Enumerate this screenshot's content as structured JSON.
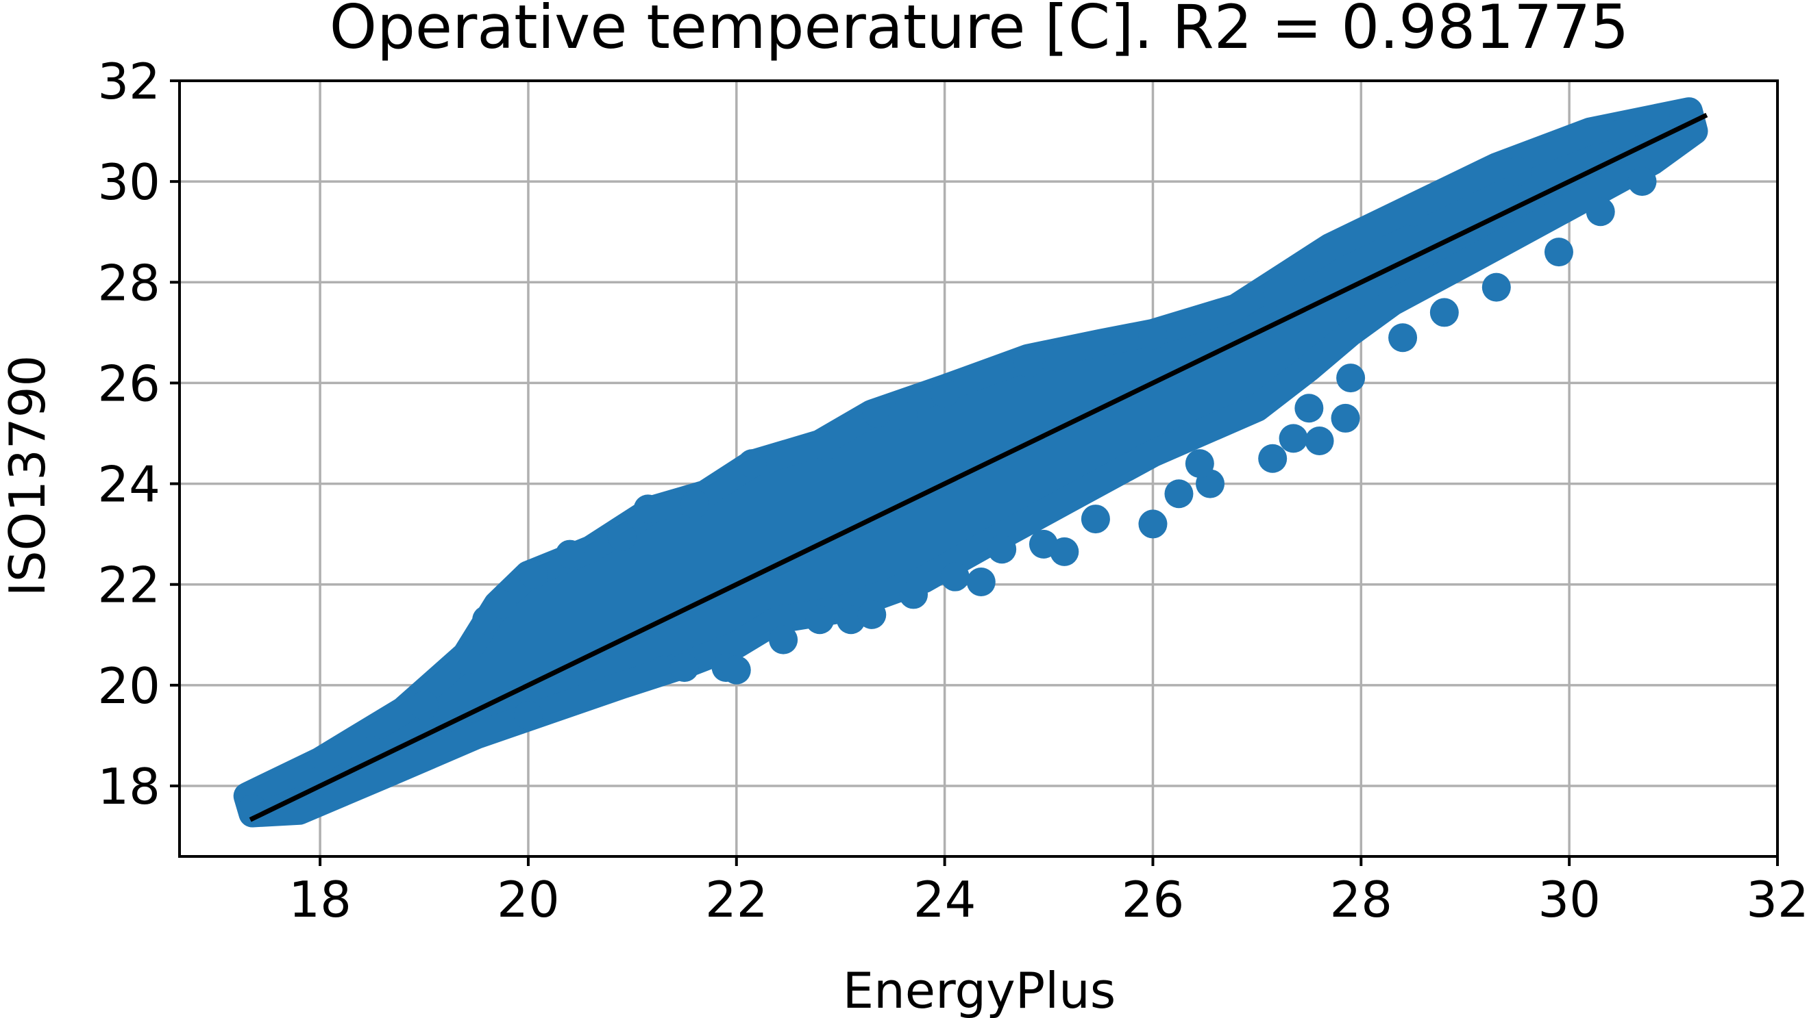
{
  "chart_data": {
    "type": "scatter",
    "title": "Operative temperature [C]. R2 = 0.981775",
    "xlabel": "EnergyPlus",
    "ylabel": "ISO13790",
    "xlim": [
      16.65,
      32
    ],
    "ylim": [
      16.6,
      32
    ],
    "x_ticks": [
      "18",
      "20",
      "22",
      "24",
      "26",
      "28",
      "30",
      "32"
    ],
    "y_ticks": [
      "18",
      "20",
      "22",
      "24",
      "26",
      "28",
      "30",
      "32"
    ],
    "grid": true,
    "colors": {
      "points": "#2277b4",
      "fit_line": "#000000",
      "grid": "#b0b0b0"
    },
    "fit_line": {
      "x": [
        17.35,
        31.3
      ],
      "y": [
        17.35,
        31.3
      ]
    },
    "band_upper": [
      [
        17.3,
        17.8
      ],
      [
        18.0,
        18.5
      ],
      [
        18.8,
        19.5
      ],
      [
        19.4,
        20.6
      ],
      [
        19.7,
        21.6
      ],
      [
        20.0,
        22.2
      ],
      [
        20.6,
        22.7
      ],
      [
        21.2,
        23.5
      ],
      [
        21.7,
        23.8
      ],
      [
        22.15,
        24.4
      ],
      [
        22.8,
        24.8
      ],
      [
        23.3,
        25.4
      ],
      [
        24.0,
        25.9
      ],
      [
        24.8,
        26.5
      ],
      [
        25.5,
        26.8
      ],
      [
        26.0,
        27.0
      ],
      [
        26.8,
        27.5
      ],
      [
        27.7,
        28.7
      ],
      [
        28.5,
        29.5
      ],
      [
        29.3,
        30.3
      ],
      [
        30.2,
        31.0
      ],
      [
        31.15,
        31.4
      ]
    ],
    "band_lower": [
      [
        31.2,
        31.0
      ],
      [
        30.8,
        30.4
      ],
      [
        30.0,
        29.5
      ],
      [
        29.2,
        28.6
      ],
      [
        28.3,
        27.6
      ],
      [
        27.9,
        27.0
      ],
      [
        27.5,
        26.3
      ],
      [
        27.0,
        25.5
      ],
      [
        26.0,
        24.6
      ],
      [
        25.2,
        23.7
      ],
      [
        24.4,
        22.8
      ],
      [
        23.8,
        22.1
      ],
      [
        23.0,
        21.5
      ],
      [
        22.4,
        21.3
      ],
      [
        22.0,
        20.8
      ],
      [
        21.5,
        20.4
      ],
      [
        20.9,
        20.0
      ],
      [
        20.2,
        19.5
      ],
      [
        19.5,
        19.0
      ],
      [
        18.6,
        18.2
      ],
      [
        17.8,
        17.5
      ],
      [
        17.35,
        17.45
      ]
    ],
    "points": [
      {
        "x": 17.35,
        "y": 17.55
      },
      {
        "x": 17.6,
        "y": 17.55
      },
      {
        "x": 18.0,
        "y": 18.1
      },
      {
        "x": 18.5,
        "y": 18.7
      },
      {
        "x": 19.0,
        "y": 19.6
      },
      {
        "x": 19.4,
        "y": 20.5
      },
      {
        "x": 19.6,
        "y": 21.3
      },
      {
        "x": 19.75,
        "y": 21.6
      },
      {
        "x": 20.05,
        "y": 22.2
      },
      {
        "x": 20.4,
        "y": 22.6
      },
      {
        "x": 20.9,
        "y": 22.95
      },
      {
        "x": 21.15,
        "y": 23.5
      },
      {
        "x": 21.6,
        "y": 23.6
      },
      {
        "x": 22.15,
        "y": 24.4
      },
      {
        "x": 22.85,
        "y": 24.75
      },
      {
        "x": 23.35,
        "y": 25.4
      },
      {
        "x": 23.6,
        "y": 25.35
      },
      {
        "x": 24.0,
        "y": 25.8
      },
      {
        "x": 24.8,
        "y": 26.4
      },
      {
        "x": 25.1,
        "y": 26.5
      },
      {
        "x": 26.0,
        "y": 26.95
      },
      {
        "x": 27.2,
        "y": 27.8
      },
      {
        "x": 28.5,
        "y": 29.4
      },
      {
        "x": 29.5,
        "y": 30.2
      },
      {
        "x": 30.5,
        "y": 30.95
      },
      {
        "x": 31.1,
        "y": 31.35
      },
      {
        "x": 20.0,
        "y": 19.4
      },
      {
        "x": 21.3,
        "y": 20.3
      },
      {
        "x": 21.5,
        "y": 20.35
      },
      {
        "x": 21.9,
        "y": 20.35
      },
      {
        "x": 22.0,
        "y": 20.3
      },
      {
        "x": 22.45,
        "y": 20.9
      },
      {
        "x": 22.8,
        "y": 21.3
      },
      {
        "x": 23.1,
        "y": 21.3
      },
      {
        "x": 23.3,
        "y": 21.4
      },
      {
        "x": 23.7,
        "y": 21.8
      },
      {
        "x": 24.1,
        "y": 22.15
      },
      {
        "x": 24.35,
        "y": 22.05
      },
      {
        "x": 24.55,
        "y": 22.7
      },
      {
        "x": 24.95,
        "y": 22.8
      },
      {
        "x": 25.15,
        "y": 22.65
      },
      {
        "x": 25.45,
        "y": 23.3
      },
      {
        "x": 26.0,
        "y": 23.2
      },
      {
        "x": 26.25,
        "y": 23.8
      },
      {
        "x": 26.55,
        "y": 24.0
      },
      {
        "x": 26.45,
        "y": 24.4
      },
      {
        "x": 27.15,
        "y": 24.5
      },
      {
        "x": 27.35,
        "y": 24.9
      },
      {
        "x": 27.6,
        "y": 24.85
      },
      {
        "x": 27.85,
        "y": 25.3
      },
      {
        "x": 27.5,
        "y": 25.5
      },
      {
        "x": 27.9,
        "y": 26.1
      },
      {
        "x": 28.4,
        "y": 26.9
      },
      {
        "x": 28.8,
        "y": 27.4
      },
      {
        "x": 29.3,
        "y": 27.9
      },
      {
        "x": 29.9,
        "y": 28.6
      },
      {
        "x": 30.3,
        "y": 29.4
      },
      {
        "x": 30.7,
        "y": 30.0
      }
    ]
  }
}
